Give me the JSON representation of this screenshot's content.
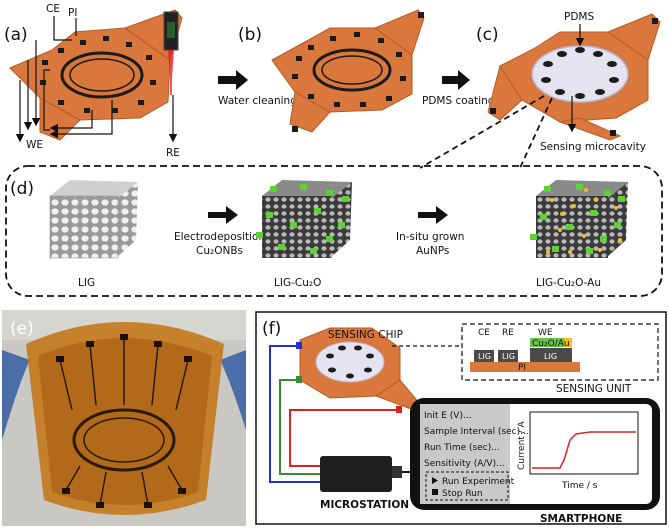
{
  "panels": {
    "a": "(a)",
    "b": "(b)",
    "c": "(c)",
    "d": "(d)",
    "e": "(e)",
    "f": "(f)"
  },
  "panel_a": {
    "ce": "CE",
    "pi": "PI",
    "we": "WE",
    "re": "RE"
  },
  "steps": {
    "water": "Water cleaning",
    "pdms_coat": "PDMS coating"
  },
  "panel_c": {
    "pdms": "PDMS",
    "cavity": "Sensing microcavity"
  },
  "panel_d": {
    "step1_line1": "Electrodeposition",
    "step1_line2": "Cu₂ONBs",
    "step2_line1": "In-situ grown",
    "step2_line2": "AuNPs",
    "lig": "LIG",
    "lig_cu": "LIG-Cu₂O",
    "lig_cu_au": "LIG-Cu₂O-Au"
  },
  "panel_f": {
    "chip": "SENSING CHIP",
    "unit": "SENSING UNIT",
    "micro": "MICROSTATION",
    "phone": "SMARTPHONE",
    "unit_ce": "CE",
    "unit_re": "RE",
    "unit_we": "WE",
    "unit_cu": "Cu₂O/Au",
    "unit_lig1": "LIG",
    "unit_lig2": "LIG",
    "unit_lig3": "LIG",
    "unit_pi": "PI",
    "menu": [
      "Init E (V)...",
      "Sample Interval (sec)...",
      "Run Time (sec)...",
      "Sensitivity (A/V)..."
    ],
    "run": "Run Experiment",
    "stop": "Stop Run",
    "ylabel": "Current / A",
    "xlabel": "Time / s"
  },
  "colors": {
    "copper": "#d9773d",
    "copper_dark": "#b65a22",
    "electrode": "#1b1b1b",
    "pdms": "#e6e3f0",
    "red": "#e02020",
    "green": "#3a8c2e",
    "blue": "#2030d0"
  }
}
